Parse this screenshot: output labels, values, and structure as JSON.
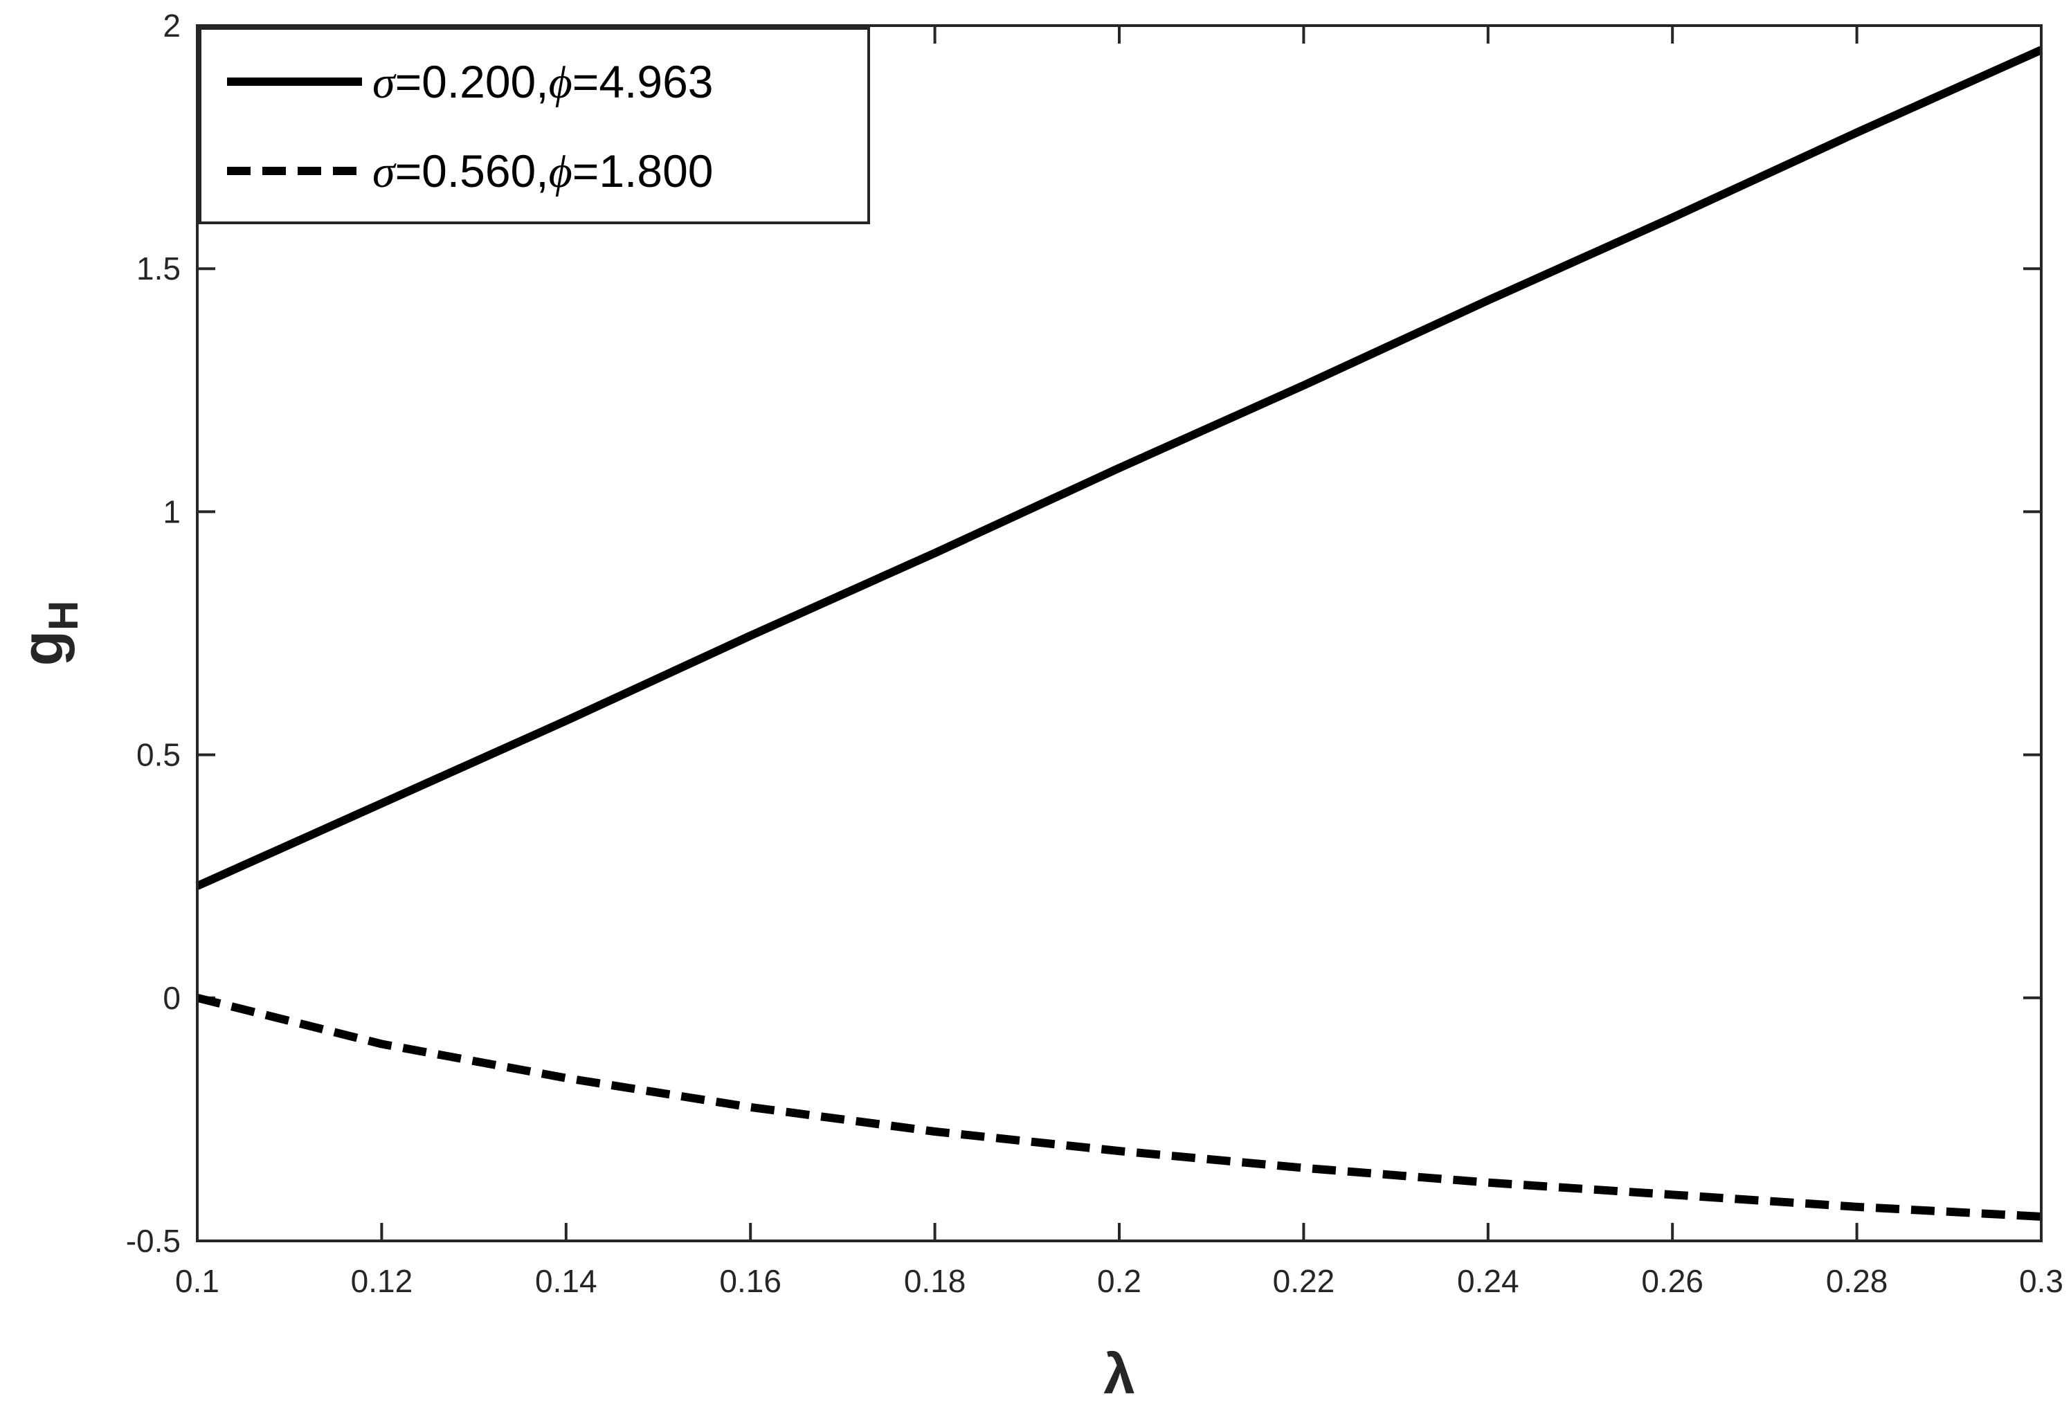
{
  "chart_data": {
    "type": "line",
    "xlabel": "λ",
    "ylabel": "g",
    "ylabel_sub": "H",
    "xlim": [
      0.1,
      0.3
    ],
    "ylim": [
      -0.5,
      2
    ],
    "grid": false,
    "legend_placement": "top-left",
    "x_ticks": [
      0.1,
      0.12,
      0.14,
      0.16,
      0.18,
      0.2,
      0.22,
      0.24,
      0.26,
      0.28,
      0.3
    ],
    "x_tick_labels": [
      "0.1",
      "0.12",
      "0.14",
      "0.16",
      "0.18",
      "0.2",
      "0.22",
      "0.24",
      "0.26",
      "0.28",
      "0.3"
    ],
    "y_ticks": [
      -0.5,
      0,
      0.5,
      1,
      1.5,
      2
    ],
    "y_tick_labels": [
      "-0.5",
      "0",
      "0.5",
      "1",
      "1.5",
      "2"
    ],
    "series": [
      {
        "name_prefix": "σ",
        "name_mid": "=0.200,",
        "name_sym": "ϕ",
        "name_suffix": "=4.963",
        "line_style": "solid",
        "color": "#000000",
        "x": [
          0.1,
          0.12,
          0.14,
          0.16,
          0.18,
          0.2,
          0.22,
          0.24,
          0.26,
          0.28,
          0.3
        ],
        "y": [
          0.23,
          0.4,
          0.57,
          0.745,
          0.915,
          1.09,
          1.26,
          1.435,
          1.605,
          1.78,
          1.95
        ]
      },
      {
        "name_prefix": "σ",
        "name_mid": "=0.560,",
        "name_sym": "ϕ",
        "name_suffix": "=1.800",
        "line_style": "dashed",
        "color": "#000000",
        "x": [
          0.1,
          0.12,
          0.14,
          0.16,
          0.18,
          0.2,
          0.22,
          0.24,
          0.26,
          0.28,
          0.3
        ],
        "y": [
          0.0,
          -0.095,
          -0.165,
          -0.225,
          -0.275,
          -0.315,
          -0.35,
          -0.38,
          -0.405,
          -0.43,
          -0.45
        ]
      }
    ]
  }
}
